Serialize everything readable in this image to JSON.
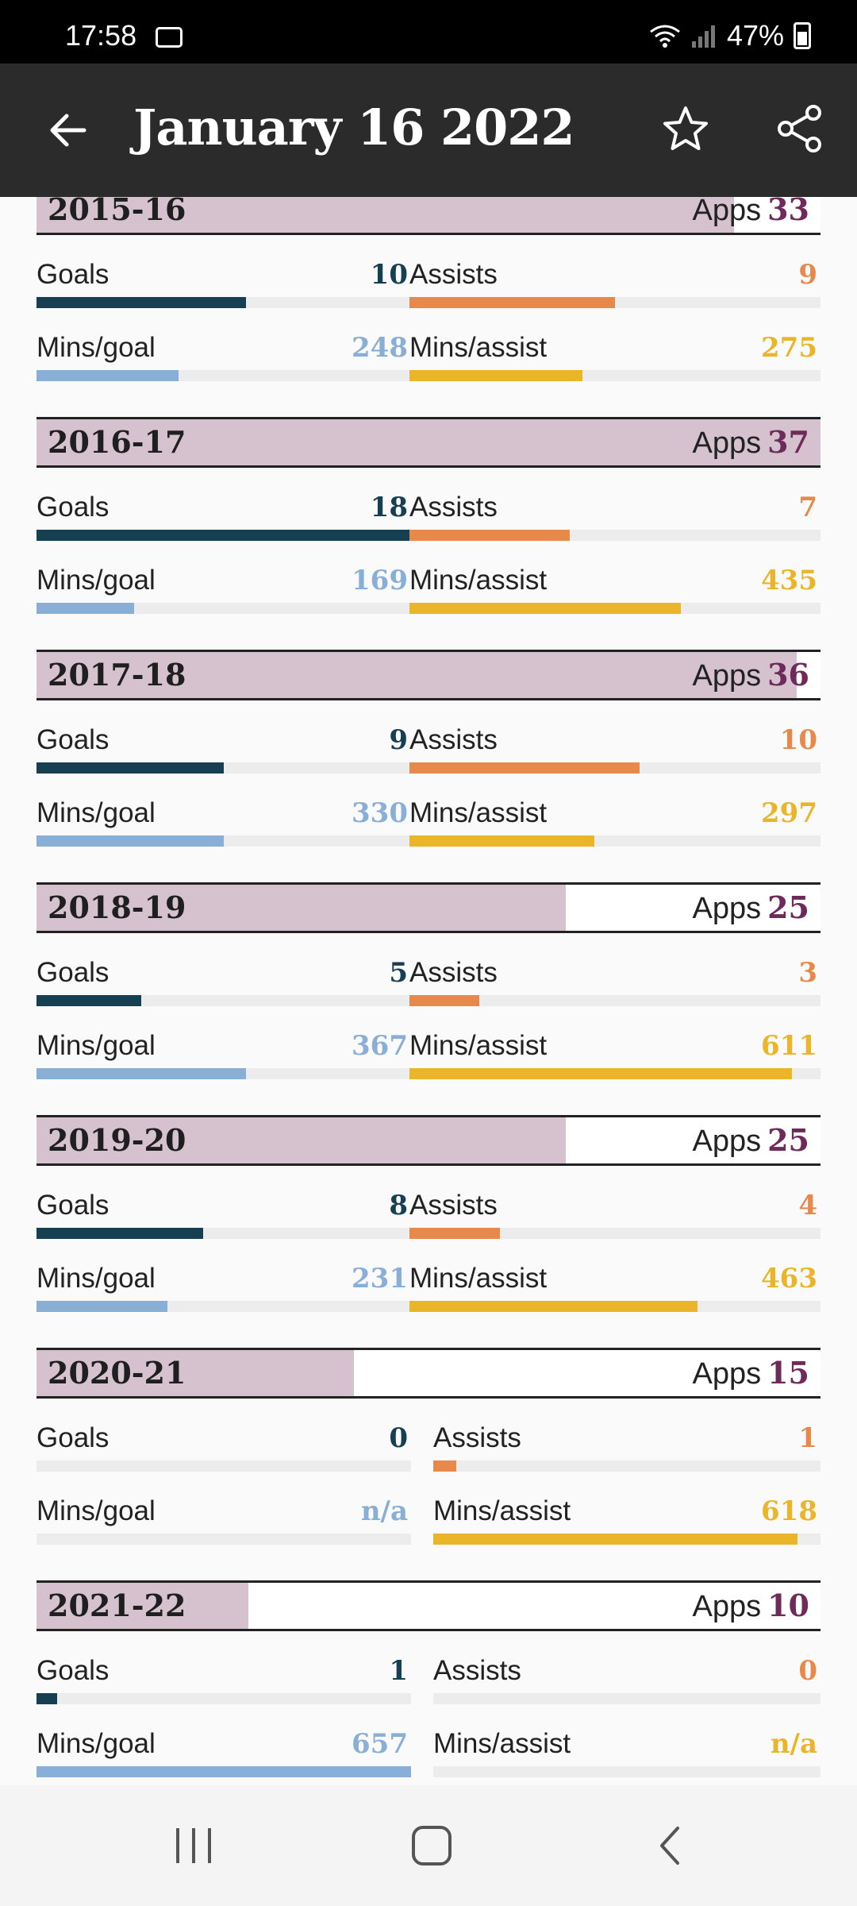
{
  "status_bar": {
    "time": "17:58",
    "battery": "47%"
  },
  "app_bar": {
    "title": "January 16 2022",
    "icons": [
      "back-arrow-icon",
      "star-icon",
      "share-icon"
    ]
  },
  "labels": {
    "goals": "Goals",
    "assists": "Assists",
    "mins_goal": "Mins/goal",
    "mins_assist": "Mins/assist",
    "apps": "Apps"
  },
  "colors": {
    "goals": "#163f52",
    "assists": "#e8894c",
    "mins_goal": "#8aafd6",
    "mins_assist": "#ebb52a",
    "apps_fill": "#d6c2cf",
    "apps_value": "#6d2a5a"
  },
  "seasons": [
    {
      "season": "2015-16",
      "apps": "33",
      "apps_fraction": 0.89,
      "goals": "10",
      "goals_fraction": 0.56,
      "assists": "9",
      "assists_fraction": 0.5,
      "mins_goal": "248",
      "mins_goal_fraction": 0.38,
      "mins_assist": "275",
      "mins_assist_fraction": 0.42
    },
    {
      "season": "2016-17",
      "apps": "37",
      "apps_fraction": 1.0,
      "goals": "18",
      "goals_fraction": 1.0,
      "assists": "7",
      "assists_fraction": 0.39,
      "mins_goal": "169",
      "mins_goal_fraction": 0.26,
      "mins_assist": "435",
      "mins_assist_fraction": 0.66
    },
    {
      "season": "2017-18",
      "apps": "36",
      "apps_fraction": 0.97,
      "goals": "9",
      "goals_fraction": 0.5,
      "assists": "10",
      "assists_fraction": 0.56,
      "mins_goal": "330",
      "mins_goal_fraction": 0.5,
      "mins_assist": "297",
      "mins_assist_fraction": 0.45
    },
    {
      "season": "2018-19",
      "apps": "25",
      "apps_fraction": 0.675,
      "goals": "5",
      "goals_fraction": 0.28,
      "assists": "3",
      "assists_fraction": 0.17,
      "mins_goal": "367",
      "mins_goal_fraction": 0.56,
      "mins_assist": "611",
      "mins_assist_fraction": 0.93
    },
    {
      "season": "2019-20",
      "apps": "25",
      "apps_fraction": 0.675,
      "goals": "8",
      "goals_fraction": 0.445,
      "assists": "4",
      "assists_fraction": 0.22,
      "mins_goal": "231",
      "mins_goal_fraction": 0.35,
      "mins_assist": "463",
      "mins_assist_fraction": 0.7
    },
    {
      "season": "2020-21",
      "apps": "15",
      "apps_fraction": 0.405,
      "goals": "0",
      "goals_fraction": 0,
      "assists": "1",
      "assists_fraction": 0.06,
      "mins_goal": "n/a",
      "mins_goal_fraction": 0,
      "mins_assist": "618",
      "mins_assist_fraction": 0.94
    },
    {
      "season": "2021-22",
      "apps": "10",
      "apps_fraction": 0.27,
      "goals": "1",
      "goals_fraction": 0.055,
      "assists": "0",
      "assists_fraction": 0,
      "mins_goal": "657",
      "mins_goal_fraction": 1.0,
      "mins_assist": "n/a",
      "mins_assist_fraction": 0
    }
  ],
  "nav_bar": {
    "icons": [
      "recents-icon",
      "home-icon",
      "back-icon"
    ]
  }
}
